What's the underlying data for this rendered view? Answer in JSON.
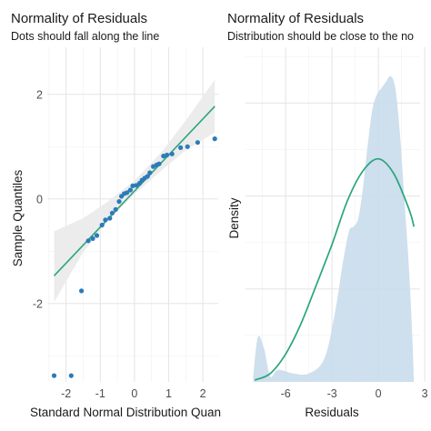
{
  "chart_data": [
    {
      "type": "scatter",
      "title": "Normality of Residuals",
      "subtitle": "Dots should fall along the line",
      "xlabel": "Standard Normal Distribution Quan",
      "ylabel": "Sample Quantiles",
      "xlim": [
        -2.55,
        2.45
      ],
      "ylim": [
        -3.5,
        2.9
      ],
      "xticks": [
        -2,
        -1,
        0,
        1,
        2
      ],
      "yticks": [
        -2,
        0,
        2
      ],
      "xtick_labels": [
        "-2",
        "-1",
        "0",
        "1",
        "2"
      ],
      "ytick_labels": [
        "-2",
        "0",
        "2"
      ],
      "grid": true,
      "colors": {
        "points": "#2b7bb9",
        "line": "#2aa57c",
        "band": "#ebebeb"
      },
      "points": {
        "x": [
          -2.35,
          -1.85,
          -1.55,
          -1.35,
          -1.22,
          -1.1,
          -0.95,
          -0.85,
          -0.72,
          -0.65,
          -0.55,
          -0.45,
          -0.38,
          -0.3,
          -0.22,
          -0.12,
          -0.05,
          0.05,
          0.15,
          0.22,
          0.3,
          0.38,
          0.45,
          0.55,
          0.65,
          0.72,
          0.85,
          0.95,
          1.1,
          1.35,
          1.55,
          1.85,
          2.35
        ],
        "y": [
          -3.38,
          -3.38,
          -1.76,
          -0.8,
          -0.76,
          -0.7,
          -0.5,
          -0.4,
          -0.37,
          -0.27,
          -0.2,
          -0.05,
          0.05,
          0.1,
          0.12,
          0.17,
          0.25,
          0.26,
          0.3,
          0.36,
          0.4,
          0.43,
          0.5,
          0.62,
          0.65,
          0.67,
          0.82,
          0.84,
          0.86,
          0.98,
          1.0,
          1.08,
          1.15
        ]
      },
      "reference_line": {
        "x": [
          -2.35,
          2.35
        ],
        "y": [
          -1.47,
          1.77
        ]
      },
      "confidence_band": {
        "x": [
          -2.35,
          -1.5,
          -0.8,
          0,
          0.8,
          1.5,
          2.35
        ],
        "lower": [
          -1.97,
          -1.02,
          -0.44,
          0.09,
          0.55,
          0.93,
          1.27
        ],
        "upper": [
          -0.62,
          -0.37,
          -0.06,
          0.35,
          0.9,
          1.5,
          2.28
        ]
      }
    },
    {
      "type": "area",
      "title": "Normality of Residuals",
      "subtitle": "Distribution should be close to the no",
      "xlabel": "Residuals",
      "ylabel": "Density",
      "xlim": [
        -8.6,
        2.7
      ],
      "ylim": [
        0,
        0.36
      ],
      "xticks": [
        -6,
        -3,
        0,
        3
      ],
      "xtick_labels": [
        "-6",
        "-3",
        "0",
        "3"
      ],
      "grid": true,
      "colors": {
        "density_fill": "#c9dcec",
        "normal_curve": "#2aa57c"
      },
      "density_curve": {
        "x": [
          -8.1,
          -7.8,
          -7.4,
          -7.0,
          -6.5,
          -5.5,
          -4.5,
          -3.5,
          -2.8,
          -2.3,
          -1.9,
          -1.6,
          -1.3,
          -1.0,
          -0.7,
          -0.4,
          -0.1,
          0.2,
          0.5,
          0.8,
          1.1,
          1.4,
          1.7,
          2.0,
          2.2,
          2.3
        ],
        "y": [
          0.006,
          0.048,
          0.036,
          0.006,
          0.013,
          0.009,
          0.009,
          0.025,
          0.075,
          0.128,
          0.162,
          0.167,
          0.176,
          0.208,
          0.253,
          0.292,
          0.309,
          0.316,
          0.323,
          0.329,
          0.316,
          0.266,
          0.193,
          0.116,
          0.047,
          0.0
        ]
      },
      "normal_curve": {
        "x": [
          -8.0,
          -7.0,
          -6.0,
          -5.0,
          -4.0,
          -3.0,
          -2.0,
          -1.0,
          0.0,
          1.0,
          2.0,
          2.3
        ],
        "y": [
          0.002,
          0.009,
          0.03,
          0.063,
          0.105,
          0.148,
          0.195,
          0.227,
          0.24,
          0.224,
          0.185,
          0.167
        ]
      }
    }
  ]
}
